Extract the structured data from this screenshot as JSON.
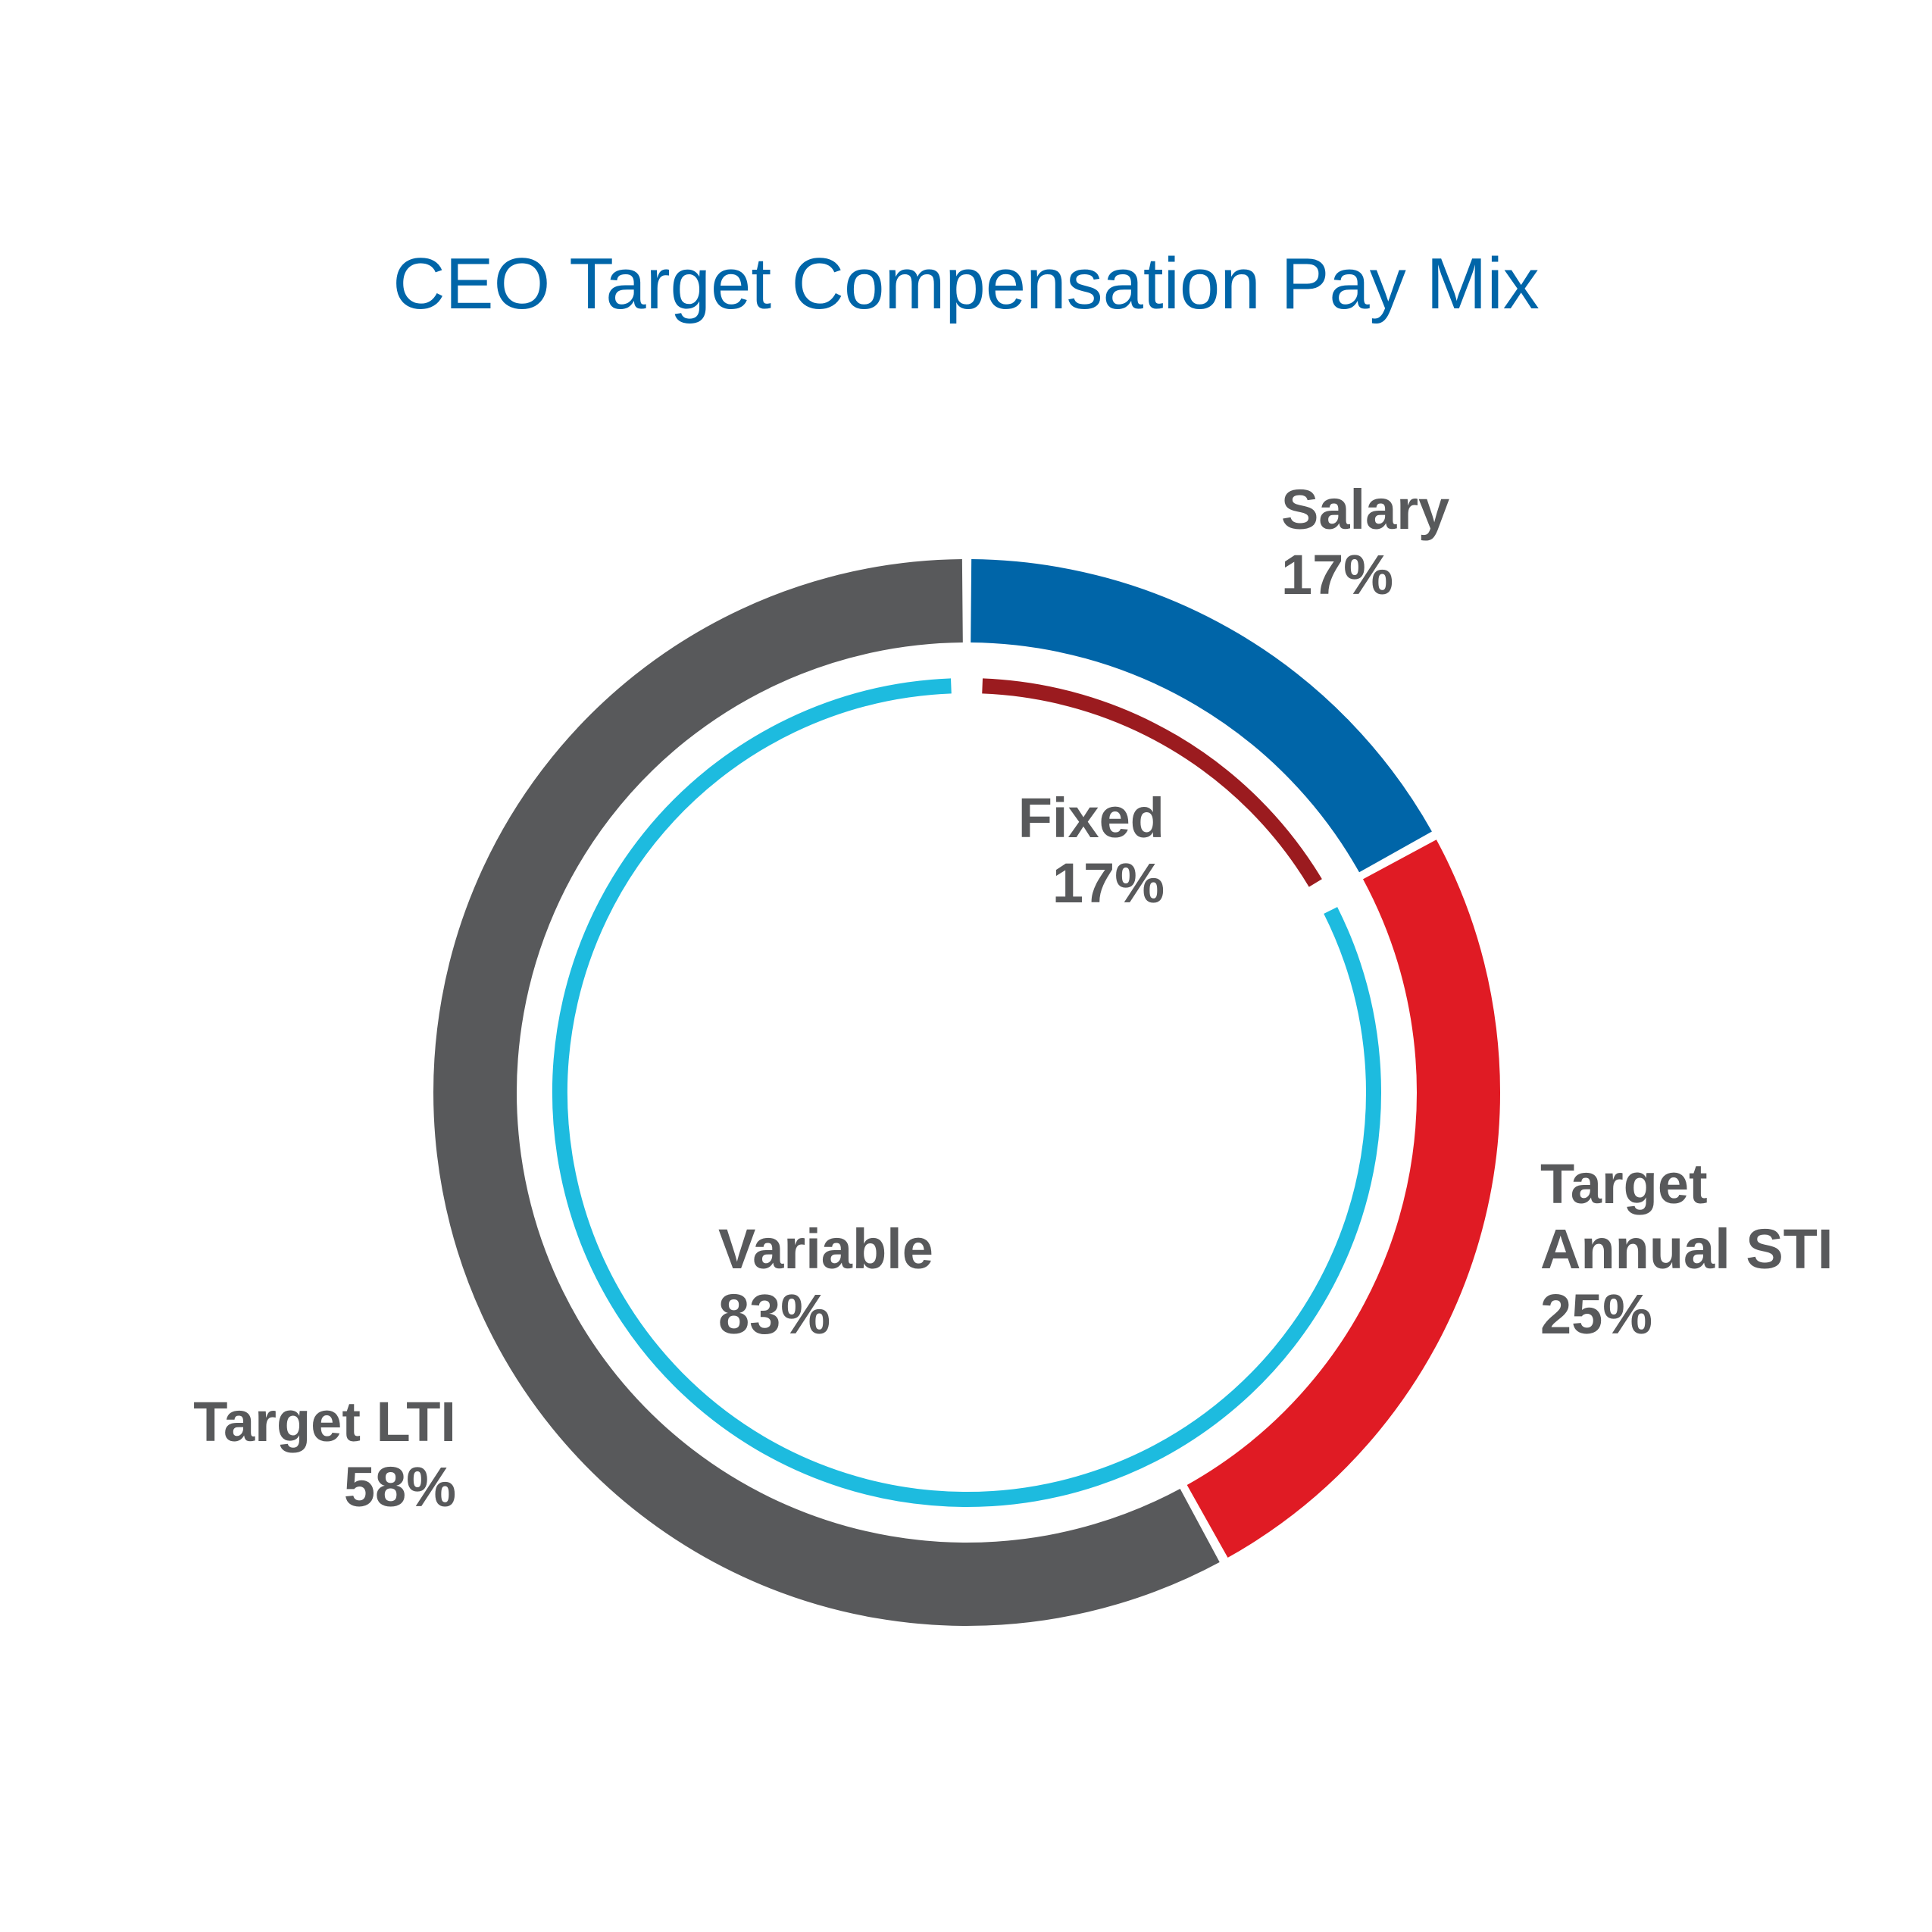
{
  "chart_data": {
    "type": "doughnut",
    "title": "CEO Target Compensation Pay Mix",
    "rings": [
      {
        "categories": [
          "Salary",
          "Target Annual STI",
          "Target LTI"
        ],
        "values": [
          17,
          25,
          58
        ],
        "value_labels": [
          "17%",
          "25%",
          "58%"
        ],
        "colors": [
          "#0065a8",
          "#e01b24",
          "#58595b"
        ]
      },
      {
        "categories": [
          "Fixed",
          "Variable"
        ],
        "values": [
          17,
          83
        ],
        "value_labels": [
          "17%",
          "83%"
        ],
        "colors": [
          "#9b1b1f",
          "#1dbbdf"
        ]
      }
    ]
  }
}
